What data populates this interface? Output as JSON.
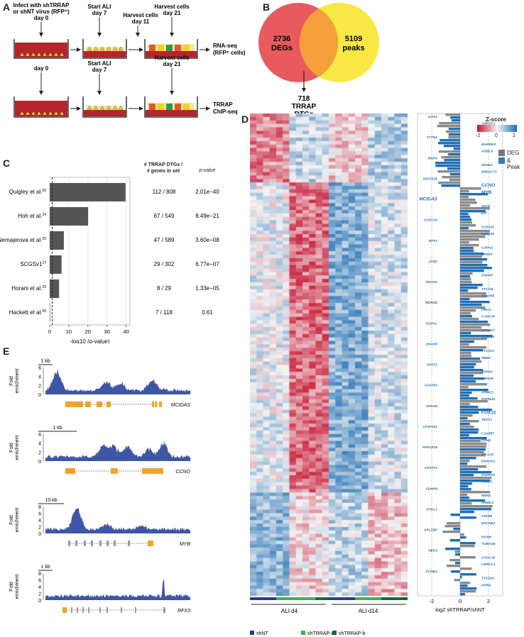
{
  "panels": {
    "A": "A",
    "B": "B",
    "C": "C",
    "D": "D",
    "E": "E"
  },
  "panelA": {
    "row1": {
      "infect": "Infect with shTRRAP\nor shNT virus (RFP⁺)\nday 0",
      "startALI": "Start ALI\nday 7",
      "harvest11": "Harvest cells\nday 11",
      "harvest21": "Harvest cells\nday 21",
      "output": "RNA-seq\n(RFP⁺ cells)"
    },
    "row2": {
      "day0": "day 0",
      "startALI": "Start ALI\nday 7",
      "harvest21": "Harvest cells\nday 21",
      "output": "TRRAP\nChIP-seq"
    }
  },
  "panelB": {
    "left_count": "2736",
    "left_label": "DEGs",
    "right_count": "5109",
    "right_label": "peaks",
    "overlap": "718\nTRRAP\nDTGs",
    "left_color": "#e85a5e",
    "right_color": "#fae73a"
  },
  "chart_data": {
    "type": "bar",
    "categories": [
      "Quigley et al.",
      "Hoh et al.",
      "Nemajerova et al.",
      "SCGSv1",
      "Horani et al.",
      "Hackett et al."
    ],
    "superscripts": [
      "30",
      "24",
      "25",
      "27",
      "29",
      "28"
    ],
    "values": [
      39.7,
      20.1,
      7.4,
      6.2,
      4.9,
      0.2
    ],
    "ratios": [
      "112 / 808",
      "67 / 549",
      "47 / 589",
      "29 / 302",
      "8 / 29",
      "7 / 118"
    ],
    "pvalues": [
      "2.01e−40",
      "8.49e−21",
      "3.60e−08",
      "6.77e−07",
      "1.33e−05",
      "0.61"
    ],
    "xlabel": "-log10 (p-value)",
    "col_header_ratio": "# TRRAP DTGs /\n# genes in set",
    "col_header_p": "p-value",
    "xticks": [
      "0",
      "10",
      "20",
      "30",
      "40"
    ],
    "xlim": [
      0,
      42
    ],
    "threshold": 1.3,
    "bar_color": "#555555"
  },
  "panelD": {
    "zscore_title": "Z-score",
    "zscore_ticks": [
      "-2",
      "0",
      "2"
    ],
    "legend": [
      "DEG",
      "& Peak"
    ],
    "legend_colors": [
      "#777777",
      "#2e7fb8"
    ],
    "xlabel": "log2 shTRRAP/shNT",
    "xticks": [
      "-2",
      "0",
      "2"
    ],
    "groups": [
      "ALI d4",
      "ALI d14"
    ],
    "conditions": [
      "shNT",
      "shTRRAP-a",
      "shTRRAP-b"
    ],
    "condition_colors": [
      "#2b3990",
      "#39b54a",
      "#0f6b2e"
    ],
    "genes": [
      "GAS2",
      "ANKEF1",
      "FSIP1",
      "TCTN1",
      "MAPRE3",
      "AGBL5",
      "MAP2",
      "SPHK1",
      "B4GALT3",
      "SPATA18",
      "CCNO",
      "MYB",
      "MCIDAS",
      "IQCG",
      "KIT",
      "CCDC24",
      "CCP110",
      "CEP135",
      "RFX3",
      "CAPS2",
      "LPAR3",
      "LKB1",
      "EFHC1",
      "DNAH7",
      "DNAH1",
      "TTC23L",
      "CFAP65",
      "MDH1B",
      "DRC3",
      "CCDC30",
      "DZIP1L",
      "SPAG17",
      "CFAP43",
      "DNAH6",
      "TTC21A",
      "ZBBX",
      "SPEF2",
      "RSPH1",
      "DNAH9",
      "CFAP52",
      "ARMC3",
      "RSPH4A",
      "SPAG6",
      "FOXJ1",
      "TEKT1",
      "CFAP161",
      "C1orf87",
      "EFHB",
      "PPP1R36",
      "TTLL10",
      "DNAAF1",
      "CFAP73",
      "DNAH10",
      "TEKT2",
      "CDHR4",
      "NEK5",
      "ARMC4",
      "GYKL1",
      "CEP85",
      "EFCAB2",
      "ARL2BP",
      "POXM",
      "TUBA1B",
      "NEK2",
      "CCDC15",
      "LRRCC1",
      "CCNB1",
      "TTC29A",
      "DPRX"
    ],
    "gene_colors_blue": "#1f6fb5"
  },
  "panelE": {
    "ylabel": "Fold\nenrichment",
    "tracks": [
      {
        "scale": "1 kb",
        "gene": "MCIDAS",
        "yticks": [
          "6",
          "4",
          "2",
          "0"
        ]
      },
      {
        "scale": "1 kb",
        "gene": "CCNO",
        "yticks": [
          "6",
          "4",
          "2",
          "0"
        ]
      },
      {
        "scale": "10 kb",
        "gene": "MYB",
        "yticks": [
          "8",
          "6",
          "4",
          "2",
          "0"
        ]
      },
      {
        "scale": "1 kb",
        "gene": "RFX3",
        "yticks": [
          "8",
          "6",
          "4",
          "2",
          "0"
        ]
      }
    ],
    "track_color": "#3f56a6",
    "exon_color": "#f0a32a"
  }
}
